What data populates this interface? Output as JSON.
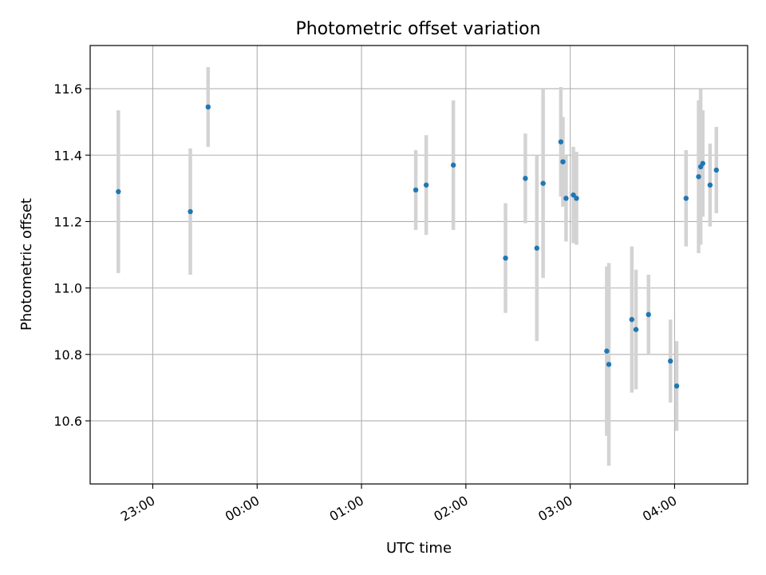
{
  "chart_data": {
    "type": "scatter",
    "title": "Photometric offset variation",
    "xlabel": "UTC time",
    "ylabel": "Photometric offset",
    "x_unit": "hours_utc_relative_to_00:00",
    "xlim": [
      -1.6,
      4.7
    ],
    "ylim": [
      10.41,
      11.73
    ],
    "x_ticks": [
      {
        "value": -1,
        "label": "23:00"
      },
      {
        "value": 0,
        "label": "00:00"
      },
      {
        "value": 1,
        "label": "01:00"
      },
      {
        "value": 2,
        "label": "02:00"
      },
      {
        "value": 3,
        "label": "03:00"
      },
      {
        "value": 4,
        "label": "04:00"
      }
    ],
    "y_ticks": [
      {
        "value": 10.6,
        "label": "10.6"
      },
      {
        "value": 10.8,
        "label": "10.8"
      },
      {
        "value": 11.0,
        "label": "11.0"
      },
      {
        "value": 11.2,
        "label": "11.2"
      },
      {
        "value": 11.4,
        "label": "11.4"
      },
      {
        "value": 11.6,
        "label": "11.6"
      }
    ],
    "grid": true,
    "marker_color": "#1f77b4",
    "errorbar_color": "#d3d3d3",
    "points": [
      {
        "x": -1.33,
        "y": 11.29,
        "err": 0.245
      },
      {
        "x": -0.64,
        "y": 11.23,
        "err": 0.19
      },
      {
        "x": -0.47,
        "y": 11.545,
        "err": 0.12
      },
      {
        "x": 1.52,
        "y": 11.295,
        "err": 0.12
      },
      {
        "x": 1.62,
        "y": 11.31,
        "err": 0.15
      },
      {
        "x": 1.88,
        "y": 11.37,
        "err": 0.195
      },
      {
        "x": 2.38,
        "y": 11.09,
        "err": 0.165
      },
      {
        "x": 2.57,
        "y": 11.33,
        "err": 0.135
      },
      {
        "x": 2.68,
        "y": 11.12,
        "err": 0.28
      },
      {
        "x": 2.74,
        "y": 11.315,
        "err": 0.285
      },
      {
        "x": 2.91,
        "y": 11.44,
        "err": 0.165
      },
      {
        "x": 2.93,
        "y": 11.38,
        "err": 0.135
      },
      {
        "x": 2.96,
        "y": 11.27,
        "err": 0.13
      },
      {
        "x": 3.03,
        "y": 11.28,
        "err": 0.145
      },
      {
        "x": 3.06,
        "y": 11.27,
        "err": 0.14
      },
      {
        "x": 3.35,
        "y": 10.81,
        "err": 0.255
      },
      {
        "x": 3.37,
        "y": 10.77,
        "err": 0.305
      },
      {
        "x": 3.59,
        "y": 10.905,
        "err": 0.22
      },
      {
        "x": 3.63,
        "y": 10.875,
        "err": 0.18
      },
      {
        "x": 3.75,
        "y": 10.92,
        "err": 0.12
      },
      {
        "x": 3.96,
        "y": 10.78,
        "err": 0.125
      },
      {
        "x": 4.02,
        "y": 10.705,
        "err": 0.135
      },
      {
        "x": 4.11,
        "y": 11.27,
        "err": 0.145
      },
      {
        "x": 4.23,
        "y": 11.335,
        "err": 0.23
      },
      {
        "x": 4.25,
        "y": 11.365,
        "err": 0.235
      },
      {
        "x": 4.27,
        "y": 11.375,
        "err": 0.16
      },
      {
        "x": 4.34,
        "y": 11.31,
        "err": 0.125
      },
      {
        "x": 4.4,
        "y": 11.355,
        "err": 0.13
      }
    ]
  }
}
